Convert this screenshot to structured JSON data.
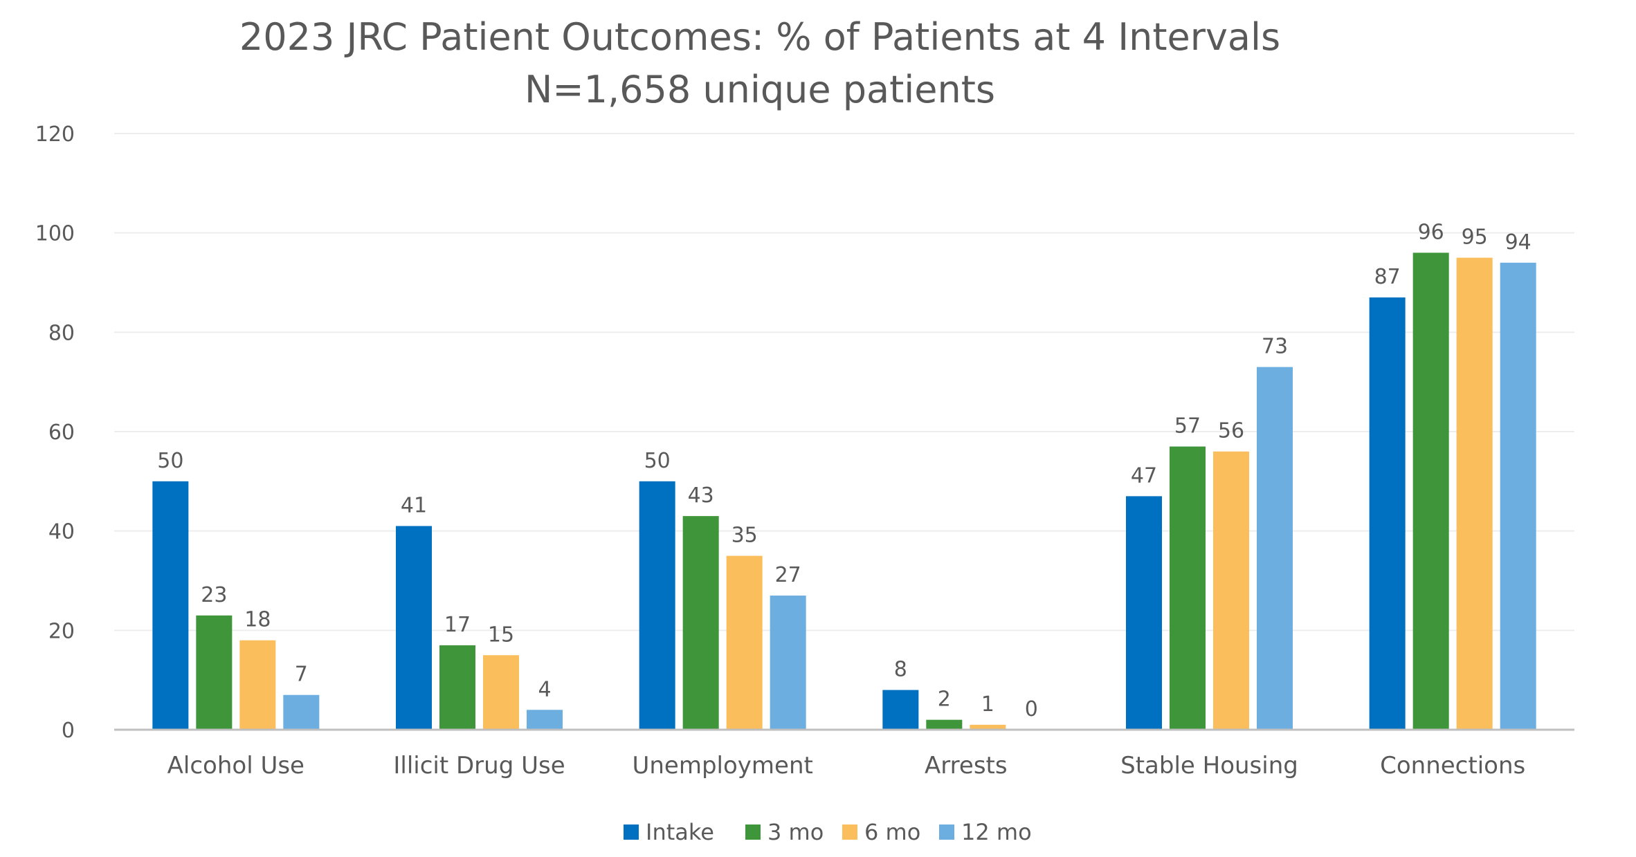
{
  "chart_data": {
    "type": "bar",
    "title": "2023 JRC Patient Outcomes:  % of Patients at 4 Intervals",
    "subtitle": "N=1,658 unique patients",
    "xlabel": "",
    "ylabel": "",
    "ylim": [
      0,
      120
    ],
    "yticks": [
      0,
      20,
      40,
      60,
      80,
      100,
      120
    ],
    "grid": true,
    "legend_position": "bottom",
    "categories": [
      "Alcohol Use",
      "Illicit Drug Use",
      "Unemployment",
      "Arrests",
      "Stable Housing",
      "Connections"
    ],
    "series": [
      {
        "name": "Intake",
        "color": "#0070C0",
        "values": [
          50,
          41,
          50,
          8,
          47,
          87
        ]
      },
      {
        "name": "3 mo",
        "color": "#3F9539",
        "values": [
          23,
          17,
          43,
          2,
          57,
          96
        ]
      },
      {
        "name": "6 mo",
        "color": "#FBBE5C",
        "values": [
          18,
          15,
          35,
          1,
          56,
          95
        ]
      },
      {
        "name": "12 mo",
        "color": "#6CAEE0",
        "values": [
          7,
          4,
          27,
          0,
          73,
          94
        ]
      }
    ],
    "data_labels": [
      [
        "50",
        "23",
        "18",
        "7"
      ],
      [
        "41",
        "17",
        "15",
        "4"
      ],
      [
        "50",
        "43",
        "35",
        "27"
      ],
      [
        "8",
        "2",
        "1",
        "0"
      ],
      [
        "47",
        "57",
        "56",
        "73"
      ],
      [
        "87",
        "96",
        "95",
        "94"
      ]
    ],
    "colors": {
      "gridline": "#EDEDED",
      "axis": "#BFBFBF",
      "text": "#595959"
    }
  }
}
